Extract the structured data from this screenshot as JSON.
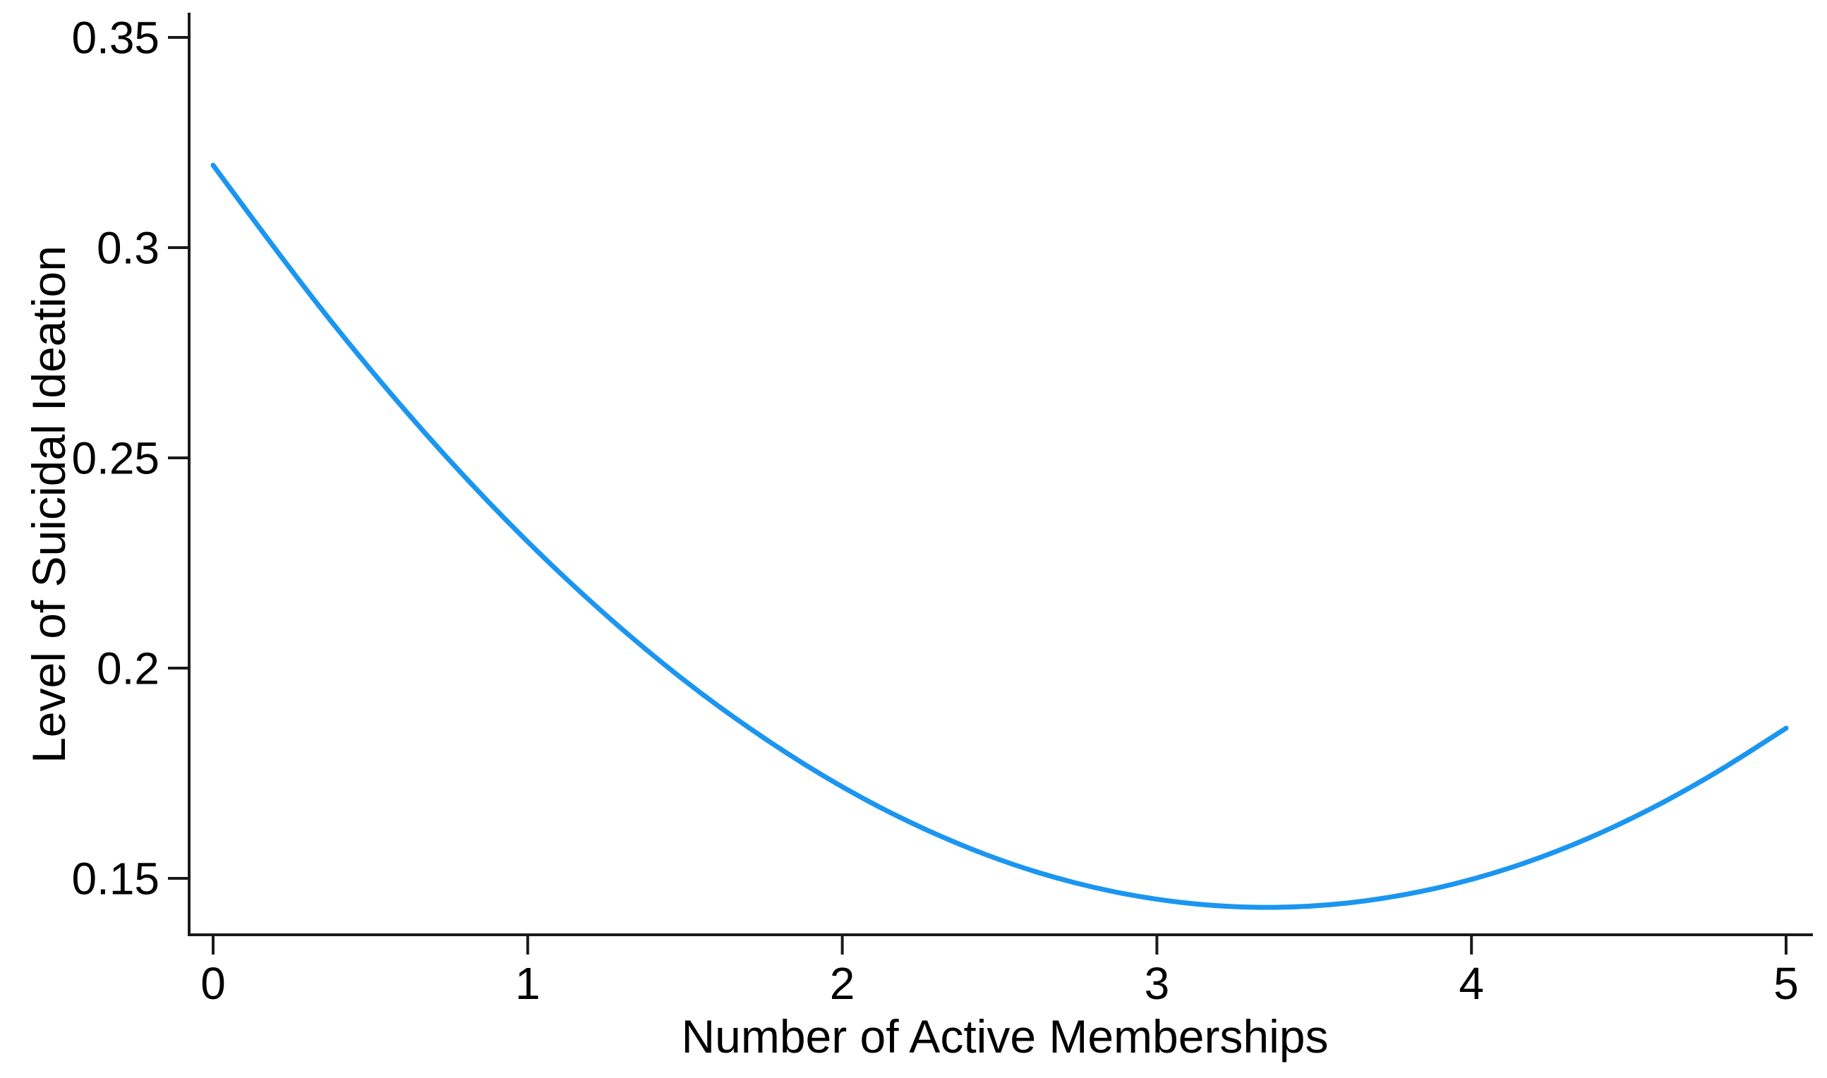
{
  "figure": {
    "background": "#ffffff"
  },
  "colors": {
    "axis": "#1a1a1a",
    "text": "#000000",
    "series_line": "#1b96f0"
  },
  "chart_data": {
    "type": "line",
    "title": "",
    "xlabel": "Number of Active Memberships",
    "ylabel": "Level of Suicidal Ideation",
    "grid": false,
    "legend": "none",
    "xlim": [
      -0.08,
      5.09
    ],
    "ylim": [
      0.137,
      0.357
    ],
    "x_ticks": [
      {
        "label": "0",
        "value": 0
      },
      {
        "label": "1",
        "value": 1
      },
      {
        "label": "2",
        "value": 2
      },
      {
        "label": "3",
        "value": 3
      },
      {
        "label": "4",
        "value": 4
      },
      {
        "label": "5",
        "value": 5
      }
    ],
    "y_ticks": [
      {
        "label": "0.15",
        "value": 0.15
      },
      {
        "label": "0.2",
        "value": 0.2
      },
      {
        "label": "0.25",
        "value": 0.25
      },
      {
        "label": "0.3",
        "value": 0.3
      },
      {
        "label": "0.35",
        "value": 0.35
      }
    ],
    "series": [
      {
        "name": "level-of-suicidal-ideation-curve",
        "color": "#1b96f0",
        "x": [
          0,
          0.25,
          0.5,
          0.75,
          1,
          1.25,
          1.5,
          1.75,
          2,
          2.25,
          2.5,
          2.75,
          3,
          3.25,
          3.5,
          3.75,
          4,
          4.25,
          4.5,
          4.75,
          5
        ],
        "y": [
          0.3196,
          0.2942,
          0.2708,
          0.2493,
          0.2298,
          0.2123,
          0.1967,
          0.1832,
          0.1715,
          0.1619,
          0.1542,
          0.1485,
          0.1448,
          0.143,
          0.1432,
          0.1454,
          0.1495,
          0.1556,
          0.1637,
          0.1737,
          0.1857
        ],
        "minimum": {
          "x": 3.35,
          "y": 0.143
        }
      }
    ]
  }
}
